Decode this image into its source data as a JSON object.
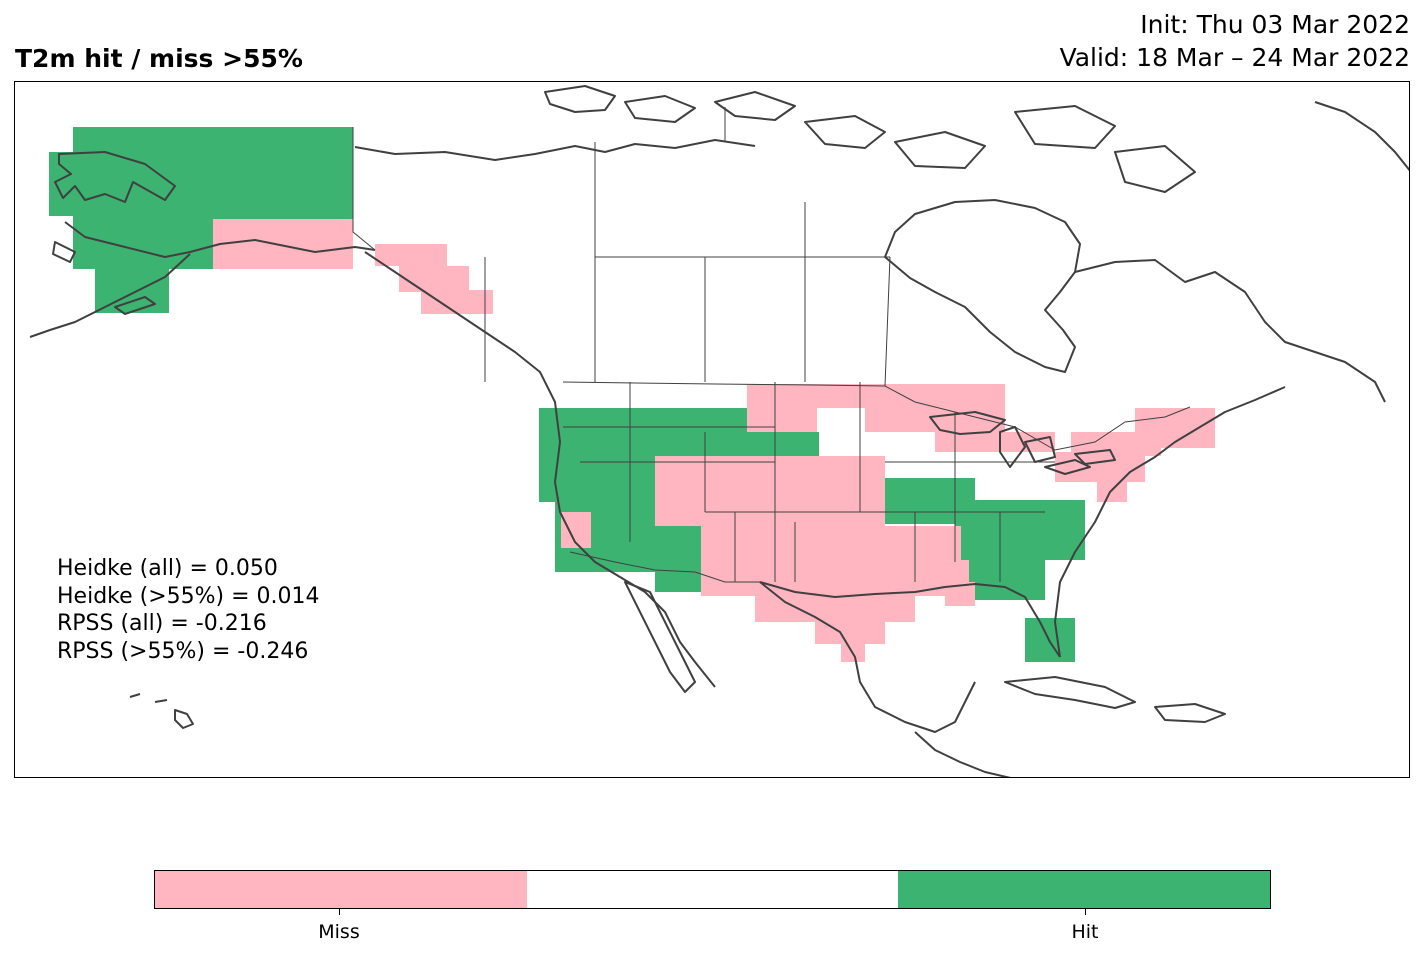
{
  "header": {
    "title": "T2m hit / miss  >55%",
    "init": "Init: Thu 03 Mar 2022",
    "valid": "Valid: 18 Mar – 24 Mar 2022"
  },
  "scores": [
    "Heidke (all) = 0.050",
    "Heidke (>55%) = 0.014",
    "RPSS (all) = -0.216",
    "RPSS (>55%) = -0.246"
  ],
  "colors": {
    "miss": "#ffb6c1",
    "neutral": "#ffffff",
    "hit": "#3cb371",
    "coast": "#404040"
  },
  "legend": {
    "miss_label": "Miss",
    "hit_label": "Hit"
  }
}
